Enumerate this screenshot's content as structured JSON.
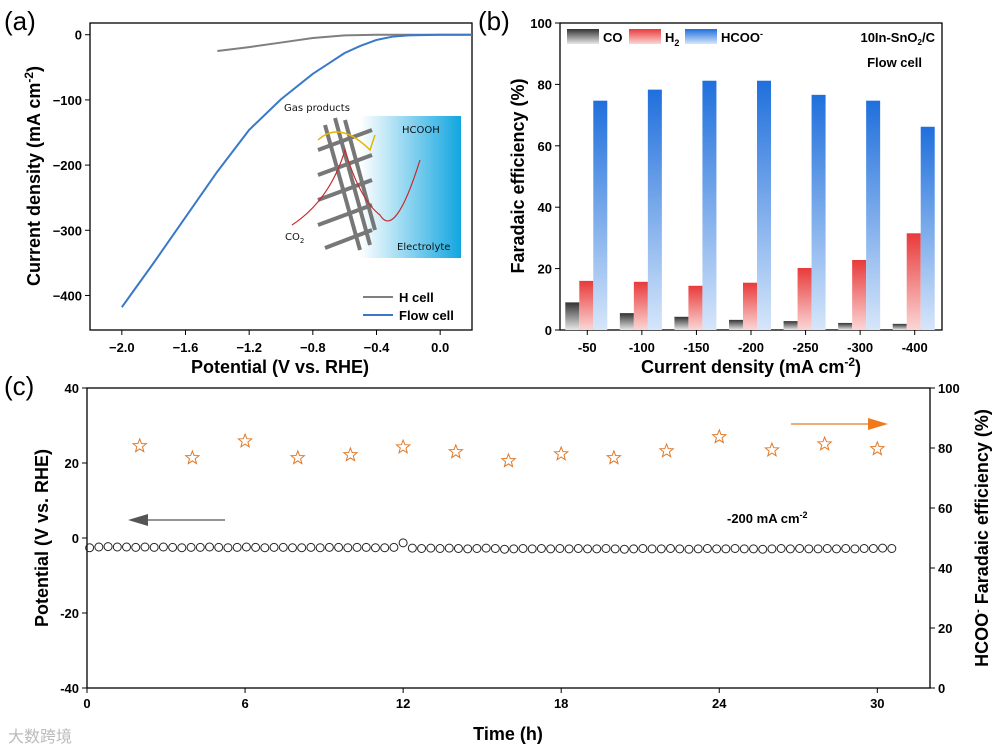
{
  "panel_labels": [
    "(a)",
    "(b)",
    "(c)"
  ],
  "watermark": "大数跨境",
  "chart_data": [
    {
      "type": "line",
      "panel": "a",
      "xlabel": "Potential (V vs. RHE)",
      "ylabel": "Current density (mA cm",
      "ylabel_sup": "-2",
      "ylabel_end": ")",
      "xlim": [
        -2.2,
        0.2
      ],
      "ylim": [
        -453,
        18
      ],
      "xticks": [
        -2.0,
        -1.6,
        -1.2,
        -0.8,
        -0.4,
        0.0
      ],
      "xtick_labels": [
        "−2.0",
        "−1.6",
        "−1.2",
        "−0.8",
        "−0.4",
        "0.0"
      ],
      "yticks": [
        0,
        -100,
        -200,
        -300,
        -400
      ],
      "ytick_labels": [
        "0",
        "−100",
        "−200",
        "−300",
        "−400"
      ],
      "legend_position": "bottom-right",
      "series": [
        {
          "name": "H cell",
          "color": "#7f7f7f",
          "x": [
            -1.4,
            -1.2,
            -1.0,
            -0.8,
            -0.6,
            -0.4,
            0.2
          ],
          "y": [
            -25,
            -19,
            -12,
            -5,
            -1,
            0,
            0
          ]
        },
        {
          "name": "Flow cell",
          "color": "#3a78c8",
          "x": [
            -2.0,
            -1.8,
            -1.6,
            -1.4,
            -1.2,
            -1.0,
            -0.8,
            -0.7,
            -0.6,
            -0.5,
            -0.4,
            -0.3,
            -0.2,
            0.0,
            0.2
          ],
          "y": [
            -418,
            -350,
            -280,
            -210,
            -146,
            -99,
            -60,
            -44,
            -28,
            -17,
            -8,
            -3,
            -1,
            0,
            0
          ]
        }
      ],
      "inset": {
        "gas_products": "Gas products",
        "hcooh": "HCOOH",
        "co2": "CO",
        "co2_sub": "2",
        "electrolyte": "Electrolyte"
      }
    },
    {
      "type": "bar",
      "panel": "b",
      "xlabel": "Current density (mA  cm",
      "xlabel_sup": "-2",
      "xlabel_end": ")",
      "ylabel": "Faradaic efficiency (%)",
      "ylim": [
        0,
        100
      ],
      "yticks": [
        0,
        20,
        40,
        60,
        80,
        100
      ],
      "categories": [
        "-50",
        "-100",
        "-150",
        "-200",
        "-250",
        "-300",
        "-400"
      ],
      "series": [
        {
          "name": "CO",
          "color": "#333333",
          "values": [
            9,
            5.5,
            4.3,
            3.3,
            2.9,
            2.3,
            2.0
          ]
        },
        {
          "name": "H",
          "name_sub": "2",
          "color": "#e83a3a",
          "values": [
            16,
            15.7,
            14.4,
            15.4,
            20.2,
            22.8,
            31.5
          ]
        },
        {
          "name": "HCOO",
          "name_sup": "-",
          "color": "#1f6fdc",
          "values": [
            74.7,
            78.3,
            81.2,
            81.2,
            76.6,
            74.7,
            66.2
          ]
        }
      ],
      "annotation1": "10In-SnO",
      "annotation1_sub": "2",
      "annotation1_end": "/C",
      "annotation2": "Flow cell",
      "legend_position": "top-left"
    },
    {
      "type": "scatter",
      "panel": "c",
      "xlabel": "Time (h)",
      "ylabel_left": "Potential (V vs. RHE)",
      "ylabel_right": "HCOO",
      "ylabel_right_sup": "-",
      "ylabel_right_end": " Faradaic efficiency (%)",
      "xlim": [
        0,
        32
      ],
      "xticks": [
        0,
        6,
        12,
        18,
        24,
        30
      ],
      "ylim_left": [
        -40,
        40
      ],
      "yticks_left": [
        -40,
        -20,
        0,
        20,
        40
      ],
      "ylim_right": [
        0,
        100
      ],
      "yticks_right": [
        0,
        20,
        40,
        60,
        80,
        100
      ],
      "annotation": "-200 mA cm",
      "annotation_sup": "-2",
      "potential": {
        "color": "#000000",
        "x_start": 0.1,
        "x_step": 0.35,
        "y": [
          -2.6,
          -2.4,
          -2.3,
          -2.4,
          -2.4,
          -2.5,
          -2.4,
          -2.5,
          -2.4,
          -2.5,
          -2.6,
          -2.5,
          -2.5,
          -2.4,
          -2.5,
          -2.6,
          -2.5,
          -2.4,
          -2.5,
          -2.6,
          -2.5,
          -2.5,
          -2.6,
          -2.6,
          -2.5,
          -2.6,
          -2.5,
          -2.5,
          -2.6,
          -2.5,
          -2.5,
          -2.6,
          -2.6,
          -2.5,
          -1.3,
          -2.7,
          -2.8,
          -2.7,
          -2.8,
          -2.7,
          -2.8,
          -2.9,
          -2.8,
          -2.7,
          -2.8,
          -3.0,
          -2.9,
          -2.8,
          -2.9,
          -2.8,
          -2.9,
          -2.8,
          -2.9,
          -2.8,
          -2.9,
          -2.9,
          -2.8,
          -2.9,
          -3.0,
          -2.9,
          -2.8,
          -2.9,
          -2.9,
          -2.8,
          -2.9,
          -3.0,
          -2.9,
          -2.8,
          -2.9,
          -2.9,
          -2.8,
          -2.9,
          -2.9,
          -3.0,
          -2.9,
          -2.8,
          -2.9,
          -2.8,
          -2.9,
          -2.9,
          -2.8,
          -2.9,
          -2.8,
          -2.9,
          -2.8,
          -2.8,
          -2.7,
          -2.8
        ]
      },
      "fe": {
        "color": "#e07a2a",
        "x": [
          2,
          4,
          6,
          8,
          10,
          12,
          14,
          16,
          18,
          20,
          22,
          24,
          26,
          28,
          30
        ],
        "y": [
          80.7,
          76.7,
          82.3,
          76.7,
          77.7,
          80.3,
          78.7,
          75.7,
          78,
          76.7,
          79,
          83.7,
          79.3,
          81.3,
          79.7
        ]
      }
    }
  ]
}
